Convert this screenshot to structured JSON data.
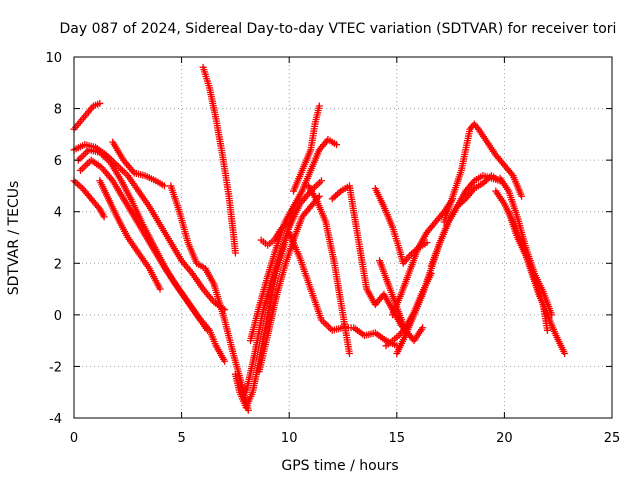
{
  "chart_data": {
    "type": "scatter",
    "title": "Day 087 of 2024, Sidereal Day-to-day VTEC variation (SDTVAR) for receiver tori",
    "xlabel": "GPS time / hours",
    "ylabel": "SDTVAR / TECUs",
    "xlim": [
      0,
      25
    ],
    "ylim": [
      -4,
      10
    ],
    "xticks": [
      0,
      5,
      10,
      15,
      20,
      25
    ],
    "yticks": [
      -4,
      -2,
      0,
      2,
      4,
      6,
      8,
      10
    ],
    "xtick_labels": [
      "0",
      "5",
      "10",
      "15",
      "20",
      "25"
    ],
    "ytick_labels": [
      "-4",
      "-2",
      "0",
      "2",
      "4",
      "6",
      "8",
      "10"
    ],
    "grid": true,
    "marker": "+",
    "color": "#ff0000",
    "series": [
      {
        "name": "s1",
        "x": [
          0.0,
          0.3,
          0.6,
          0.9,
          1.2
        ],
        "y": [
          7.2,
          7.5,
          7.8,
          8.1,
          8.2
        ]
      },
      {
        "name": "s2",
        "x": [
          0.0,
          0.4,
          0.8,
          1.2,
          1.4
        ],
        "y": [
          5.2,
          4.9,
          4.5,
          4.1,
          3.8
        ]
      },
      {
        "name": "s3",
        "x": [
          0.0,
          0.5,
          1.0,
          1.5,
          2.0,
          2.5,
          3.0,
          3.5,
          4.0,
          4.5,
          5.0,
          5.5,
          6.0,
          6.5,
          7.0
        ],
        "y": [
          6.4,
          6.6,
          6.5,
          6.2,
          5.8,
          5.4,
          4.8,
          4.2,
          3.5,
          2.8,
          2.1,
          1.6,
          1.0,
          0.5,
          0.2
        ]
      },
      {
        "name": "s4",
        "x": [
          0.2,
          0.7,
          1.2,
          1.7,
          2.2,
          2.7,
          3.2,
          3.7,
          4.2,
          4.7,
          5.2,
          5.7,
          6.2
        ],
        "y": [
          6.0,
          6.4,
          6.3,
          5.9,
          5.2,
          4.4,
          3.5,
          2.7,
          1.9,
          1.2,
          0.6,
          0.0,
          -0.6
        ]
      },
      {
        "name": "s5",
        "x": [
          0.3,
          0.8,
          1.3,
          1.8,
          2.3,
          2.8,
          3.3,
          3.8,
          4.3,
          4.8,
          5.3,
          5.8,
          6.3,
          6.6,
          7.0
        ],
        "y": [
          5.6,
          6.0,
          5.7,
          5.2,
          4.5,
          3.8,
          3.1,
          2.4,
          1.7,
          1.1,
          0.5,
          -0.1,
          -0.6,
          -1.2,
          -1.8
        ]
      },
      {
        "name": "s6",
        "x": [
          1.2,
          1.6,
          2.0,
          2.5,
          3.0,
          3.5,
          4.0
        ],
        "y": [
          5.2,
          4.5,
          3.8,
          3.0,
          2.4,
          1.8,
          1.0
        ]
      },
      {
        "name": "s7",
        "x": [
          1.8,
          2.3,
          2.8,
          3.3,
          3.8,
          4.2
        ],
        "y": [
          6.7,
          6.0,
          5.5,
          5.4,
          5.2,
          5.0
        ]
      },
      {
        "name": "s8",
        "x": [
          4.5,
          4.9,
          5.3,
          5.7,
          6.1,
          6.5,
          7.0,
          7.4,
          7.8,
          8.1
        ],
        "y": [
          5.0,
          4.0,
          2.8,
          2.0,
          1.8,
          1.2,
          -0.2,
          -1.5,
          -2.7,
          -3.7
        ]
      },
      {
        "name": "s9",
        "x": [
          6.0,
          6.3,
          6.6,
          6.9,
          7.2,
          7.4,
          7.5
        ],
        "y": [
          9.6,
          8.8,
          7.6,
          6.2,
          4.6,
          3.2,
          2.4
        ]
      },
      {
        "name": "s10",
        "x": [
          7.5,
          7.7,
          8.0,
          8.3,
          8.6,
          9.0,
          9.4,
          9.8,
          10.2
        ],
        "y": [
          -2.3,
          -3.0,
          -3.6,
          -3.0,
          -1.8,
          0.0,
          1.6,
          2.8,
          4.2
        ]
      },
      {
        "name": "s11",
        "x": [
          8.0,
          8.4,
          8.8,
          9.2,
          9.6,
          10.0,
          10.5,
          11.0,
          11.5
        ],
        "y": [
          -3.0,
          -1.5,
          0.2,
          1.4,
          2.4,
          3.4,
          4.3,
          4.8,
          5.2
        ]
      },
      {
        "name": "s12",
        "x": [
          8.6,
          9.0,
          9.4,
          9.8,
          10.2,
          10.6,
          11.0,
          11.4
        ],
        "y": [
          -2.2,
          -0.8,
          0.7,
          1.9,
          2.9,
          3.8,
          4.2,
          4.6
        ]
      },
      {
        "name": "s13",
        "x": [
          8.2,
          8.6,
          9.0,
          9.4,
          9.8,
          10.2,
          10.6,
          11.0,
          11.4,
          11.8,
          12.2
        ],
        "y": [
          -1.0,
          0.3,
          1.5,
          2.6,
          3.6,
          4.2,
          4.8,
          5.6,
          6.4,
          6.8,
          6.6
        ]
      },
      {
        "name": "s14",
        "x": [
          8.7,
          9.0,
          9.3,
          9.6,
          9.9
        ],
        "y": [
          2.9,
          2.7,
          2.9,
          3.3,
          3.6
        ]
      },
      {
        "name": "s15",
        "x": [
          10.2,
          10.6,
          11.0,
          11.2,
          11.4
        ],
        "y": [
          4.8,
          5.6,
          6.4,
          7.4,
          8.1
        ]
      },
      {
        "name": "s16",
        "x": [
          10.9,
          11.3,
          11.7,
          12.1,
          12.5,
          12.8
        ],
        "y": [
          5.0,
          4.4,
          3.6,
          2.0,
          0.0,
          -1.5
        ]
      },
      {
        "name": "s17",
        "x": [
          10.0,
          10.5,
          11.0,
          11.5,
          12.0,
          12.5,
          13.0,
          13.5,
          14.0,
          14.5,
          15.0
        ],
        "y": [
          3.2,
          2.2,
          1.0,
          -0.2,
          -0.6,
          -0.5,
          -0.5,
          -0.8,
          -0.7,
          -1.0,
          -1.2
        ]
      },
      {
        "name": "s18",
        "x": [
          12.0,
          12.4,
          12.8,
          13.2,
          13.6,
          14.0,
          14.4,
          14.8,
          15.2,
          15.6
        ],
        "y": [
          4.5,
          4.8,
          5.0,
          3.0,
          1.0,
          0.4,
          0.8,
          0.2,
          -0.4,
          -0.8
        ]
      },
      {
        "name": "s19",
        "x": [
          14.2,
          14.6,
          15.0,
          15.4,
          15.8,
          16.2
        ],
        "y": [
          2.1,
          1.2,
          0.3,
          -0.6,
          -1.0,
          -0.5
        ]
      },
      {
        "name": "s20",
        "x": [
          14.5,
          14.8,
          15.1,
          15.4,
          15.8,
          16.2,
          16.6
        ],
        "y": [
          -1.2,
          -1.0,
          -0.8,
          -0.5,
          0.1,
          0.9,
          1.6
        ]
      },
      {
        "name": "s21",
        "x": [
          14.8,
          15.2,
          15.6,
          16.0,
          16.4,
          16.8,
          17.2,
          17.6
        ],
        "y": [
          0.0,
          0.8,
          1.7,
          2.6,
          3.2,
          3.6,
          4.0,
          4.5
        ]
      },
      {
        "name": "s22",
        "x": [
          14.0,
          14.4,
          14.8,
          15.1,
          15.3,
          15.6,
          16.0,
          16.4
        ],
        "y": [
          4.9,
          4.2,
          3.4,
          2.6,
          2.0,
          2.3,
          2.6,
          2.8
        ]
      },
      {
        "name": "s23",
        "x": [
          15.0,
          15.4,
          15.8,
          16.2,
          16.6,
          17.0,
          17.4,
          17.8,
          18.2,
          18.6,
          19.0,
          19.4,
          19.8
        ],
        "y": [
          -1.5,
          -0.8,
          0.0,
          0.8,
          1.8,
          2.8,
          3.6,
          4.2,
          4.8,
          5.2,
          5.4,
          5.3,
          5.2
        ]
      },
      {
        "name": "s24",
        "x": [
          17.2,
          17.6,
          18.0,
          18.2,
          18.4,
          18.6,
          18.8,
          19.2,
          19.6,
          20.0,
          20.4,
          20.8
        ],
        "y": [
          3.6,
          4.6,
          5.6,
          6.4,
          7.2,
          7.4,
          7.2,
          6.7,
          6.2,
          5.8,
          5.4,
          4.6
        ]
      },
      {
        "name": "s25",
        "x": [
          16.6,
          17.0,
          17.4,
          17.8,
          18.2,
          18.6,
          19.0,
          19.4,
          19.8
        ],
        "y": [
          1.9,
          2.8,
          3.6,
          4.2,
          4.5,
          4.9,
          5.1,
          5.4,
          5.2
        ]
      },
      {
        "name": "s26",
        "x": [
          19.8,
          20.2,
          20.6,
          21.0,
          21.4,
          21.8,
          22.2
        ],
        "y": [
          5.3,
          4.8,
          3.8,
          2.6,
          1.6,
          0.9,
          0.0
        ]
      },
      {
        "name": "s27",
        "x": [
          19.6,
          20.0,
          20.4,
          20.8,
          21.2,
          21.6,
          22.0,
          22.4,
          22.8
        ],
        "y": [
          4.8,
          4.3,
          3.6,
          2.8,
          1.8,
          0.8,
          0.0,
          -0.8,
          -1.5
        ]
      },
      {
        "name": "s28",
        "x": [
          20.2,
          20.6,
          21.0,
          21.4,
          21.8,
          22.0
        ],
        "y": [
          4.0,
          3.0,
          2.3,
          1.4,
          0.4,
          -0.6
        ]
      }
    ]
  }
}
